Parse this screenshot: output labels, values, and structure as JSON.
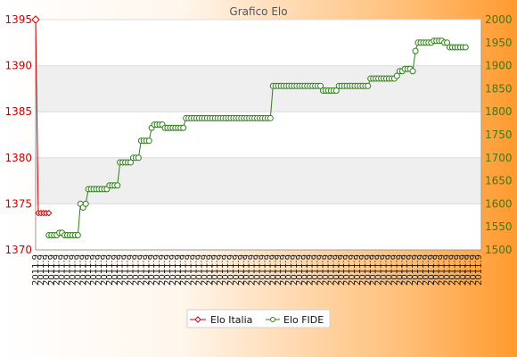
{
  "chart_data": {
    "type": "line",
    "title": "Grafico Elo",
    "xlabel": "",
    "ylabel": "",
    "grid": true,
    "legend_position": "bottom",
    "y_left": {
      "ylim": [
        1370,
        1395
      ],
      "ticks": [
        1370,
        1375,
        1380,
        1385,
        1390,
        1395
      ],
      "color": "#cc0000"
    },
    "y_right": {
      "ylim": [
        1500,
        2000
      ],
      "ticks": [
        1500,
        1550,
        1600,
        1650,
        1700,
        1750,
        1800,
        1850,
        1900,
        1950,
        2000
      ],
      "color": "#2e7d1a"
    },
    "x_count": 170,
    "x_tick_label": "2011.9",
    "series": [
      {
        "name": "Elo Italia",
        "axis": "left",
        "color": "#cc0000",
        "marker": "diamond",
        "points": [
          {
            "x": 0,
            "y": 1395
          },
          {
            "x": 1,
            "y": 1374
          },
          {
            "x": 2,
            "y": 1374
          },
          {
            "x": 3,
            "y": 1374
          },
          {
            "x": 4,
            "y": 1374
          },
          {
            "x": 5,
            "y": 1374
          }
        ]
      },
      {
        "name": "Elo FIDE",
        "axis": "right",
        "color": "#2e7d1a",
        "marker": "circle",
        "segments": [
          {
            "from": 5,
            "to": 8,
            "y": 1532
          },
          {
            "from": 9,
            "to": 10,
            "y": 1537
          },
          {
            "from": 11,
            "to": 16,
            "y": 1532
          },
          {
            "from": 17,
            "to": 17,
            "y": 1600
          },
          {
            "from": 18,
            "to": 18,
            "y": 1592
          },
          {
            "from": 19,
            "to": 19,
            "y": 1600
          },
          {
            "from": 20,
            "to": 27,
            "y": 1632
          },
          {
            "from": 28,
            "to": 31,
            "y": 1640
          },
          {
            "from": 32,
            "to": 36,
            "y": 1690
          },
          {
            "from": 37,
            "to": 39,
            "y": 1700
          },
          {
            "from": 40,
            "to": 43,
            "y": 1737
          },
          {
            "from": 44,
            "to": 44,
            "y": 1765
          },
          {
            "from": 45,
            "to": 48,
            "y": 1772
          },
          {
            "from": 49,
            "to": 56,
            "y": 1765
          },
          {
            "from": 57,
            "to": 79,
            "y": 1786
          },
          {
            "from": 80,
            "to": 89,
            "y": 1786
          },
          {
            "from": 90,
            "to": 108,
            "y": 1856
          },
          {
            "from": 109,
            "to": 114,
            "y": 1846
          },
          {
            "from": 115,
            "to": 126,
            "y": 1856
          },
          {
            "from": 127,
            "to": 136,
            "y": 1872
          },
          {
            "from": 137,
            "to": 137,
            "y": 1878
          },
          {
            "from": 138,
            "to": 139,
            "y": 1888
          },
          {
            "from": 140,
            "to": 142,
            "y": 1893
          },
          {
            "from": 143,
            "to": 143,
            "y": 1888
          },
          {
            "from": 144,
            "to": 144,
            "y": 1932
          },
          {
            "from": 145,
            "to": 150,
            "y": 1950
          },
          {
            "from": 151,
            "to": 154,
            "y": 1954
          },
          {
            "from": 155,
            "to": 156,
            "y": 1950
          },
          {
            "from": 157,
            "to": 163,
            "y": 1940
          }
        ]
      }
    ]
  }
}
